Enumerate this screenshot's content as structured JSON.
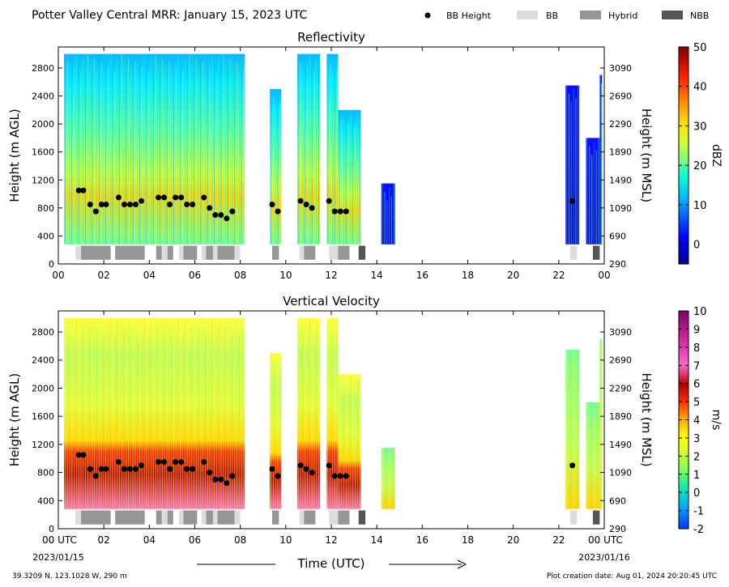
{
  "header": {
    "title": "Potter Valley Central MRR:  January 15, 2023 UTC",
    "legend": [
      {
        "label": "BB Height",
        "color": "#000000",
        "kind": "dot"
      },
      {
        "label": "BB",
        "color": "#dcdcdc",
        "kind": "box"
      },
      {
        "label": "Hybrid",
        "color": "#969696",
        "kind": "box"
      },
      {
        "label": "NBB",
        "color": "#555555",
        "kind": "box"
      }
    ]
  },
  "footer": {
    "location": "39.3209 N, 123.1028 W, 290 m",
    "created": "Plot creation date: Aug 01, 2024 20:20:45 UTC",
    "time_label": "Time (UTC)",
    "start_date": "2023/01/15",
    "end_date": "2023/01/16"
  },
  "chart_data": [
    {
      "type": "heatmap",
      "title": "Reflectivity",
      "ylabel": "Height (m AGL)",
      "ylabel_right": "Height (m MSL)",
      "xlim": [
        0,
        24
      ],
      "ylim": [
        0,
        3100
      ],
      "x_ticks": [
        "00",
        "02",
        "04",
        "06",
        "08",
        "10",
        "12",
        "14",
        "16",
        "18",
        "20",
        "22",
        "00"
      ],
      "y_ticks": [
        0,
        400,
        800,
        1200,
        1600,
        2000,
        2400,
        2800
      ],
      "y_ticks_right": [
        290,
        690,
        1090,
        1490,
        1890,
        2290,
        2690,
        3090
      ],
      "colorbar": {
        "label": "dBZ",
        "min": -5,
        "max": 50,
        "ticks": [
          0,
          10,
          20,
          30,
          40,
          50
        ],
        "scale": "jet"
      },
      "bright_band_height": [
        {
          "x": 0.9,
          "y": 1050
        },
        {
          "x": 1.1,
          "y": 1050
        },
        {
          "x": 1.4,
          "y": 850
        },
        {
          "x": 1.65,
          "y": 750
        },
        {
          "x": 1.9,
          "y": 850
        },
        {
          "x": 2.1,
          "y": 850
        },
        {
          "x": 2.65,
          "y": 950
        },
        {
          "x": 2.9,
          "y": 850
        },
        {
          "x": 3.15,
          "y": 850
        },
        {
          "x": 3.4,
          "y": 850
        },
        {
          "x": 3.65,
          "y": 900
        },
        {
          "x": 4.4,
          "y": 950
        },
        {
          "x": 4.65,
          "y": 950
        },
        {
          "x": 4.9,
          "y": 850
        },
        {
          "x": 5.15,
          "y": 950
        },
        {
          "x": 5.4,
          "y": 950
        },
        {
          "x": 5.65,
          "y": 850
        },
        {
          "x": 5.9,
          "y": 850
        },
        {
          "x": 6.4,
          "y": 950
        },
        {
          "x": 6.65,
          "y": 800
        },
        {
          "x": 6.9,
          "y": 700
        },
        {
          "x": 7.15,
          "y": 700
        },
        {
          "x": 7.4,
          "y": 650
        },
        {
          "x": 7.65,
          "y": 750
        },
        {
          "x": 9.4,
          "y": 850
        },
        {
          "x": 9.65,
          "y": 750
        },
        {
          "x": 10.65,
          "y": 900
        },
        {
          "x": 10.9,
          "y": 850
        },
        {
          "x": 11.15,
          "y": 800
        },
        {
          "x": 11.9,
          "y": 900
        },
        {
          "x": 12.15,
          "y": 750
        },
        {
          "x": 12.4,
          "y": 750
        },
        {
          "x": 12.65,
          "y": 750
        },
        {
          "x": 22.6,
          "y": 900
        }
      ],
      "bb_classification": [
        {
          "type": "BB",
          "start": 0.75,
          "end": 1.0
        },
        {
          "type": "Hybrid",
          "start": 1.0,
          "end": 2.3
        },
        {
          "type": "Hybrid",
          "start": 2.5,
          "end": 3.8
        },
        {
          "type": "Hybrid",
          "start": 4.3,
          "end": 4.55
        },
        {
          "type": "BB",
          "start": 4.55,
          "end": 4.8
        },
        {
          "type": "Hybrid",
          "start": 4.8,
          "end": 5.05
        },
        {
          "type": "BB",
          "start": 5.3,
          "end": 5.5
        },
        {
          "type": "Hybrid",
          "start": 5.5,
          "end": 6.1
        },
        {
          "type": "BB",
          "start": 6.3,
          "end": 6.5
        },
        {
          "type": "Hybrid",
          "start": 6.5,
          "end": 6.8
        },
        {
          "type": "BB",
          "start": 6.8,
          "end": 7.0
        },
        {
          "type": "Hybrid",
          "start": 7.0,
          "end": 7.75
        },
        {
          "type": "BB",
          "start": 7.75,
          "end": 8.0
        },
        {
          "type": "Hybrid",
          "start": 9.4,
          "end": 9.7
        },
        {
          "type": "BB",
          "start": 10.6,
          "end": 10.8
        },
        {
          "type": "Hybrid",
          "start": 10.8,
          "end": 11.3
        },
        {
          "type": "BB",
          "start": 11.9,
          "end": 12.3
        },
        {
          "type": "Hybrid",
          "start": 12.3,
          "end": 12.8
        },
        {
          "type": "NBB",
          "start": 13.2,
          "end": 13.5
        },
        {
          "type": "BB",
          "start": 22.5,
          "end": 22.8
        },
        {
          "type": "NBB",
          "start": 23.5,
          "end": 23.8
        }
      ],
      "echo_columns": [
        {
          "start": 0.25,
          "end": 8.2,
          "top": 3000
        },
        {
          "start": 9.3,
          "end": 9.8,
          "top": 2500
        },
        {
          "start": 10.5,
          "end": 11.5,
          "top": 3000
        },
        {
          "start": 11.8,
          "end": 12.3,
          "top": 3000
        },
        {
          "start": 12.3,
          "end": 13.3,
          "top": 2200
        },
        {
          "start": 14.2,
          "end": 14.8,
          "top": 1150
        },
        {
          "start": 22.3,
          "end": 22.9,
          "top": 2550
        },
        {
          "start": 23.2,
          "end": 23.8,
          "top": 1800
        },
        {
          "start": 23.8,
          "end": 23.9,
          "top": 2700
        }
      ]
    },
    {
      "type": "heatmap",
      "title": "Vertical Velocity",
      "ylabel": "Height (m AGL)",
      "ylabel_right": "Height (m MSL)",
      "xlim": [
        0,
        24
      ],
      "ylim": [
        0,
        3100
      ],
      "x_ticks": [
        "00 UTC",
        "02",
        "04",
        "06",
        "08",
        "10",
        "12",
        "14",
        "16",
        "18",
        "20",
        "22",
        "00 UTC"
      ],
      "y_ticks": [
        0,
        400,
        800,
        1200,
        1600,
        2000,
        2400,
        2800
      ],
      "y_ticks_right": [
        290,
        690,
        1090,
        1490,
        1890,
        2290,
        2690,
        3090
      ],
      "colorbar": {
        "label": "m/s",
        "min": -2,
        "max": 10,
        "ticks": [
          -2,
          -1,
          0,
          1,
          2,
          3,
          4,
          5,
          6,
          7,
          8,
          9,
          10
        ],
        "scale": "velocity"
      },
      "same_bright_band_and_classification_as_panel": 0
    }
  ]
}
